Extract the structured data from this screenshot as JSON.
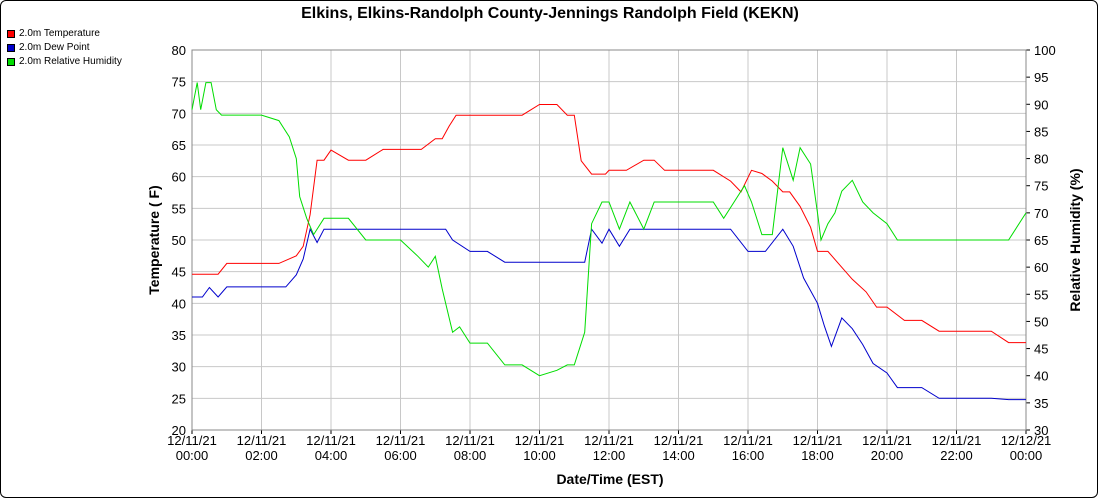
{
  "chart_data": {
    "type": "line",
    "title": "Elkins, Elkins-Randolph County-Jennings Randolph Field (KEKN)",
    "xlabel": "Date/Time (EST)",
    "ylabel": "Temperature ( F)",
    "y2label": "Relative Humidity (%)",
    "xlim": [
      0,
      24
    ],
    "ylim": [
      20,
      80
    ],
    "y2lim": [
      30,
      100
    ],
    "grid": true,
    "legend_position": "top-left, outside plot",
    "x_ticks": [
      {
        "date": "12/11/21",
        "time": "00:00"
      },
      {
        "date": "12/11/21",
        "time": "02:00"
      },
      {
        "date": "12/11/21",
        "time": "04:00"
      },
      {
        "date": "12/11/21",
        "time": "06:00"
      },
      {
        "date": "12/11/21",
        "time": "08:00"
      },
      {
        "date": "12/11/21",
        "time": "10:00"
      },
      {
        "date": "12/11/21",
        "time": "12:00"
      },
      {
        "date": "12/11/21",
        "time": "14:00"
      },
      {
        "date": "12/11/21",
        "time": "16:00"
      },
      {
        "date": "12/11/21",
        "time": "18:00"
      },
      {
        "date": "12/11/21",
        "time": "20:00"
      },
      {
        "date": "12/11/21",
        "time": "22:00"
      },
      {
        "date": "12/12/21",
        "time": "00:00"
      }
    ],
    "y_ticks": [
      "20",
      "25",
      "30",
      "35",
      "40",
      "45",
      "50",
      "55",
      "60",
      "65",
      "70",
      "75",
      "80"
    ],
    "y2_ticks": [
      "30",
      "35",
      "40",
      "45",
      "50",
      "55",
      "60",
      "65",
      "70",
      "75",
      "80",
      "85",
      "90",
      "95",
      "100"
    ],
    "x_unit": "hours since 12/11/21 00:00 EST",
    "series": [
      {
        "name": "2.0m Temperature",
        "axis": "left",
        "color": "#ff0000",
        "x": [
          0,
          0.75,
          1,
          2,
          2.5,
          3,
          3.2,
          3.4,
          3.6,
          3.8,
          4,
          4.5,
          5,
          5.5,
          6,
          6.3,
          6.6,
          7,
          7.2,
          7.4,
          7.6,
          8,
          8.5,
          9,
          9.5,
          10,
          10.5,
          10.8,
          11,
          11.2,
          11.5,
          11.7,
          11.9,
          12,
          12.5,
          13,
          13.3,
          13.6,
          14,
          14.5,
          15,
          15.5,
          15.8,
          16.1,
          16.4,
          16.7,
          17,
          17.2,
          17.5,
          17.8,
          18,
          18.3,
          18.6,
          19,
          19.4,
          19.7,
          20,
          20.5,
          21,
          21.5,
          22,
          22.5,
          23,
          23.5,
          24
        ],
        "y": [
          44.6,
          44.6,
          46.3,
          46.3,
          46.3,
          47.5,
          49,
          54,
          62.6,
          62.6,
          64.2,
          62.6,
          62.6,
          64.3,
          64.3,
          64.3,
          64.3,
          66,
          66,
          68,
          69.7,
          69.7,
          69.7,
          69.7,
          69.7,
          71.4,
          71.4,
          69.7,
          69.7,
          62.5,
          60.4,
          60.4,
          60.4,
          61,
          61,
          62.6,
          62.6,
          61,
          61,
          61,
          61,
          59.3,
          57.6,
          61,
          60.5,
          59.3,
          57.6,
          57.6,
          55.3,
          52,
          48.2,
          48.2,
          46.3,
          43.8,
          41.8,
          39.4,
          39.4,
          37.3,
          37.3,
          35.6,
          35.6,
          35.6,
          35.6,
          33.8,
          33.8
        ]
      },
      {
        "name": "2.0m Dew Point",
        "axis": "left",
        "color": "#0000cc",
        "x": [
          0,
          0.3,
          0.5,
          0.75,
          1,
          2,
          2.7,
          3,
          3.2,
          3.4,
          3.6,
          3.8,
          4,
          5,
          6,
          7,
          7.3,
          7.5,
          8,
          8.5,
          9,
          10,
          11,
          11.3,
          11.5,
          11.8,
          12,
          12.3,
          12.6,
          13,
          14,
          15,
          15.5,
          16,
          16.5,
          17,
          17.3,
          17.6,
          18,
          18.2,
          18.4,
          18.7,
          19,
          19.3,
          19.6,
          20,
          20.3,
          20.6,
          21,
          21.5,
          22,
          22.5,
          23,
          23.5,
          24
        ],
        "y": [
          41,
          41,
          42.5,
          41,
          42.6,
          42.6,
          42.6,
          44.5,
          47,
          51.7,
          49.6,
          51.7,
          51.7,
          51.7,
          51.7,
          51.7,
          51.7,
          50,
          48.2,
          48.2,
          46.5,
          46.5,
          46.5,
          46.5,
          51.7,
          49.5,
          51.7,
          49,
          51.7,
          51.7,
          51.7,
          51.7,
          51.7,
          48.2,
          48.2,
          51.7,
          49,
          44,
          40,
          36.4,
          33.2,
          37.7,
          36,
          33.5,
          30.5,
          29,
          26.7,
          26.7,
          26.7,
          25,
          25,
          25,
          25,
          24.8,
          24.8
        ]
      },
      {
        "name": "2.0m Relative Humidity",
        "axis": "right",
        "color": "#00dd00",
        "x": [
          0,
          0.15,
          0.25,
          0.4,
          0.55,
          0.7,
          0.85,
          1,
          1.2,
          1.5,
          2,
          2.5,
          2.8,
          3,
          3.1,
          3.3,
          3.5,
          3.6,
          3.8,
          4,
          4.5,
          5,
          5.5,
          6,
          6.5,
          6.8,
          7,
          7.2,
          7.5,
          7.7,
          8,
          8.5,
          9,
          9.5,
          10,
          10.5,
          10.8,
          11,
          11.3,
          11.5,
          11.8,
          12,
          12.3,
          12.6,
          13,
          13.3,
          13.6,
          14,
          14.5,
          15,
          15.3,
          15.6,
          15.9,
          16.1,
          16.4,
          16.7,
          17,
          17.3,
          17.5,
          17.8,
          18,
          18.1,
          18.3,
          18.5,
          18.7,
          19,
          19.3,
          19.6,
          20,
          20.3,
          20.6,
          21,
          21.5,
          22,
          22.5,
          23,
          23.5,
          24
        ],
        "y": [
          89,
          94,
          89,
          94,
          94,
          89,
          88,
          88,
          88,
          88,
          88,
          87,
          84,
          80,
          73,
          69,
          66,
          67,
          69,
          69,
          69,
          65,
          65,
          65,
          62,
          60,
          62,
          56,
          48,
          49,
          46,
          46,
          42,
          42,
          40,
          41,
          42,
          42,
          48,
          68,
          72,
          72,
          67,
          72,
          67,
          72,
          72,
          72,
          72,
          72,
          69,
          72,
          75,
          72,
          66,
          66,
          82,
          76,
          82,
          79,
          70,
          65,
          68,
          70,
          74,
          76,
          72,
          70,
          68,
          65,
          65,
          65,
          65,
          65,
          65,
          65,
          65,
          70
        ]
      }
    ]
  }
}
